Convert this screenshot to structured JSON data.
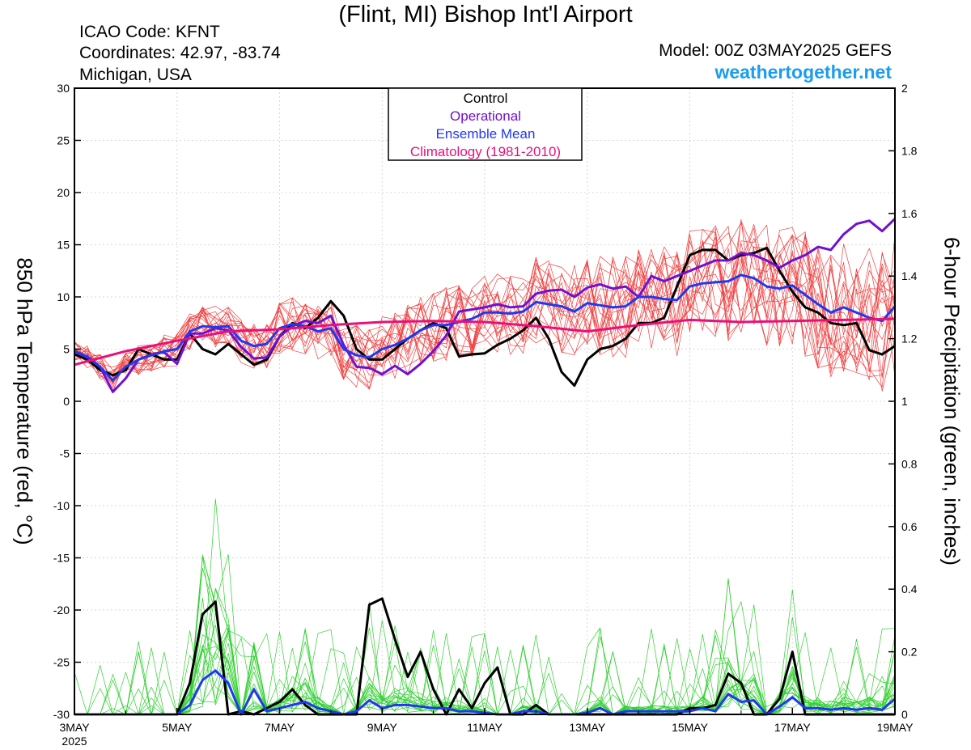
{
  "header": {
    "title": "(Flint, MI) Bishop Int'l Airport",
    "icao": "ICAO Code: KFNT",
    "coords": "Coordinates: 42.97, -83.74",
    "region": "Michigan, USA",
    "model": "Model: 00Z 03MAY2025 GEFS",
    "site": "weathertogether.net"
  },
  "colors": {
    "control": "#000000",
    "operational": "#7010d0",
    "ensemble_mean": "#2038f0",
    "climatology": "#e8107a",
    "members_temp": "#f04040",
    "members_precip": "#30d030",
    "brand": "#1a9cf0"
  },
  "chart_data": {
    "type": "line",
    "x_tick_labels": [
      "3MAY",
      "5MAY",
      "7MAY",
      "9MAY",
      "11MAY",
      "13MAY",
      "15MAY",
      "17MAY",
      "19MAY"
    ],
    "x_year_label": "2025",
    "x_range_days": [
      0,
      16
    ],
    "left_axis": {
      "label": "850 hPa Temperature (red, °C)",
      "range": [
        -30,
        30
      ],
      "ticks": [
        30,
        25,
        20,
        15,
        10,
        5,
        0,
        -5,
        -10,
        -15,
        -20,
        -25,
        -30
      ]
    },
    "right_axis": {
      "label": "6-hour Precipitation (green, inches)",
      "range": [
        0,
        2
      ],
      "ticks": [
        "2",
        "1.8",
        "1.6",
        "1.4",
        "1.2",
        "1",
        "0.8",
        "0.6",
        "0.4",
        "0.2",
        "0"
      ]
    },
    "legend": {
      "position": "top-center",
      "entries": [
        "Control",
        "Operational",
        "Ensemble Mean",
        "Climatology (1981-2010)"
      ]
    },
    "temperature_series": [
      {
        "name": "Control",
        "x": [
          0,
          0.25,
          0.5,
          0.75,
          1,
          1.25,
          1.5,
          1.75,
          2,
          2.25,
          2.5,
          2.75,
          3,
          3.25,
          3.5,
          3.75,
          4,
          4.25,
          4.5,
          4.75,
          5,
          5.25,
          5.5,
          5.75,
          6,
          6.25,
          6.5,
          6.75,
          7,
          7.25,
          7.5,
          7.75,
          8,
          8.25,
          8.5,
          8.75,
          9,
          9.25,
          9.5,
          9.75,
          10,
          10.25,
          10.5,
          10.75,
          11,
          11.25,
          11.5,
          11.75,
          12,
          12.25,
          12.5,
          12.75,
          13,
          13.25,
          13.5,
          13.75,
          14,
          14.25,
          14.5,
          14.75,
          15,
          15.25,
          15.5,
          15.75,
          16
        ],
        "values": [
          4.5,
          4,
          3,
          2.5,
          3,
          5,
          4.5,
          4,
          4,
          6.5,
          5,
          4.5,
          5.5,
          4.5,
          3.5,
          4,
          6.2,
          7.5,
          7,
          8,
          9.6,
          8.2,
          5,
          4,
          4,
          5,
          6,
          6.8,
          7.5,
          7,
          4.3,
          4.5,
          4.6,
          5.4,
          6,
          6.8,
          8,
          6,
          2.8,
          1.5,
          4,
          5,
          5.3,
          6,
          7.5,
          7.5,
          8,
          11,
          14,
          14.5,
          14.5,
          13.5,
          14,
          14.2,
          14.7,
          12.5,
          10.5,
          9,
          8.5,
          7.5,
          7.3,
          7.5,
          4.9,
          4.5,
          5.3
        ]
      },
      {
        "name": "Operational",
        "x": [
          0,
          0.25,
          0.5,
          0.75,
          1,
          1.25,
          1.5,
          1.75,
          2,
          2.25,
          2.5,
          2.75,
          3,
          3.25,
          3.5,
          3.75,
          4,
          4.25,
          4.5,
          4.75,
          5,
          5.25,
          5.5,
          5.75,
          6,
          6.25,
          6.5,
          6.75,
          7,
          7.25,
          7.5,
          7.75,
          8,
          8.25,
          8.5,
          8.75,
          9,
          9.25,
          9.5,
          9.75,
          10,
          10.25,
          10.5,
          10.75,
          11,
          11.25,
          11.5,
          11.75,
          12,
          12.25,
          12.5,
          12.75,
          13,
          13.25,
          13.5,
          13.75,
          14,
          14.25,
          14.5,
          14.75,
          15,
          15.25,
          15.5,
          15.75,
          16
        ],
        "values": [
          4.8,
          4.2,
          3.3,
          0.9,
          2.2,
          4,
          4.5,
          4.7,
          3.6,
          6.5,
          6.5,
          7,
          6.8,
          5.2,
          4.1,
          4.2,
          6.2,
          7.2,
          7.7,
          7.5,
          8.2,
          5.4,
          3.3,
          3.2,
          2.6,
          3.4,
          2.6,
          3.6,
          4.8,
          6.3,
          8.6,
          8.8,
          9,
          9.3,
          9,
          9.1,
          10.3,
          10.6,
          10.7,
          10,
          10.9,
          11.2,
          10.8,
          11,
          10,
          12,
          11.5,
          12,
          12.5,
          13,
          13.5,
          13.5,
          14.2,
          14,
          13.5,
          12.8,
          13.5,
          14,
          14.8,
          14.5,
          16,
          17,
          17.3,
          16.3,
          17.5
        ]
      },
      {
        "name": "Ensemble Mean",
        "x": [
          0,
          0.25,
          0.5,
          0.75,
          1,
          1.25,
          1.5,
          1.75,
          2,
          2.25,
          2.5,
          2.75,
          3,
          3.25,
          3.5,
          3.75,
          4,
          4.25,
          4.5,
          4.75,
          5,
          5.25,
          5.5,
          5.75,
          6,
          6.25,
          6.5,
          6.75,
          7,
          7.25,
          7.5,
          7.75,
          8,
          8.25,
          8.5,
          8.75,
          9,
          9.25,
          9.5,
          9.75,
          10,
          10.25,
          10.5,
          10.75,
          11,
          11.25,
          11.5,
          11.75,
          12,
          12.25,
          12.5,
          12.75,
          13,
          13.25,
          13.5,
          13.75,
          14,
          14.25,
          14.5,
          14.75,
          15,
          15.25,
          15.5,
          15.75,
          16
        ],
        "values": [
          4.8,
          4.3,
          3.3,
          2,
          3.3,
          4,
          4.4,
          4.8,
          5,
          6.7,
          7.2,
          7.1,
          7.2,
          5.8,
          5.3,
          5.5,
          7,
          7.4,
          7.2,
          6.7,
          7,
          5,
          4.4,
          4.2,
          5,
          5.4,
          6,
          6.8,
          7.3,
          7.3,
          7.6,
          7.9,
          8.5,
          8.5,
          8.4,
          8.6,
          9.5,
          9.3,
          9.1,
          8.6,
          9.4,
          9.2,
          9,
          9.1,
          10,
          10,
          9.8,
          9.7,
          11,
          11.3,
          11.4,
          11.5,
          12.1,
          11.8,
          11,
          10.8,
          11.1,
          10.2,
          9.3,
          8.5,
          9,
          8.5,
          8,
          7.7,
          9.1
        ]
      },
      {
        "name": "Climatology (1981-2010)",
        "x": [
          0,
          1,
          2,
          3,
          4,
          5,
          6,
          7,
          8,
          9,
          10,
          11,
          12,
          13,
          14,
          15,
          16
        ],
        "values": [
          3.5,
          4.8,
          5.8,
          6.7,
          6.9,
          7.3,
          7.6,
          7.7,
          7.6,
          7.2,
          6.7,
          7.3,
          7.8,
          7.6,
          7.7,
          7.8,
          7.9
        ]
      }
    ],
    "precip_series": [
      {
        "name": "Control",
        "x": [
          0,
          0.25,
          0.5,
          0.75,
          1,
          1.25,
          1.5,
          1.75,
          2,
          2.25,
          2.5,
          2.75,
          3,
          3.25,
          3.5,
          3.75,
          4,
          4.25,
          4.5,
          4.75,
          5,
          5.25,
          5.5,
          5.75,
          6,
          6.25,
          6.5,
          6.75,
          7,
          7.25,
          7.5,
          7.75,
          8,
          8.25,
          8.5,
          8.75,
          9,
          9.25,
          9.5,
          9.75,
          10,
          10.25,
          10.5,
          10.75,
          11,
          11.25,
          11.5,
          11.75,
          12,
          12.25,
          12.5,
          12.75,
          13,
          13.25,
          13.5,
          13.75,
          14,
          14.25,
          14.5,
          14.75,
          15,
          15.25,
          15.5,
          15.75,
          16
        ],
        "values": [
          0,
          0,
          0,
          0,
          0,
          0,
          0,
          0,
          0,
          0.1,
          0.32,
          0.36,
          0,
          0.01,
          0,
          0.02,
          0.04,
          0.08,
          0.03,
          0,
          0,
          0,
          0,
          0.35,
          0.37,
          0.24,
          0.12,
          0.2,
          0.08,
          0,
          0.08,
          0.02,
          0.1,
          0.15,
          0,
          0,
          0.03,
          0,
          0,
          0,
          0,
          0,
          0,
          0,
          0,
          0,
          0,
          0,
          0.02,
          0.02,
          0.03,
          0.13,
          0.1,
          0,
          0,
          0.05,
          0.2,
          0,
          0,
          0,
          0,
          0,
          0,
          0,
          0
        ]
      },
      {
        "name": "Ensemble Mean",
        "x": [
          0,
          0.25,
          0.5,
          0.75,
          1,
          1.25,
          1.5,
          1.75,
          2,
          2.25,
          2.5,
          2.75,
          3,
          3.25,
          3.5,
          3.75,
          4,
          4.25,
          4.5,
          4.75,
          5,
          5.25,
          5.5,
          5.75,
          6,
          6.25,
          6.5,
          6.75,
          7,
          7.25,
          7.5,
          7.75,
          8,
          8.25,
          8.5,
          8.75,
          9,
          9.25,
          9.5,
          9.75,
          10,
          10.25,
          10.5,
          10.75,
          11,
          11.25,
          11.5,
          11.75,
          12,
          12.25,
          12.5,
          12.75,
          13,
          13.25,
          13.5,
          13.75,
          14,
          14.25,
          14.5,
          14.75,
          15,
          15.25,
          15.5,
          15.75,
          16
        ],
        "values": [
          0,
          0,
          0,
          0,
          0,
          0,
          0,
          0,
          0,
          0.03,
          0.11,
          0.14,
          0.1,
          0,
          0.08,
          0.01,
          0.02,
          0.03,
          0.04,
          0.02,
          0.01,
          0,
          0.01,
          0.045,
          0.02,
          0.03,
          0.03,
          0.025,
          0.02,
          0.02,
          0.01,
          0.01,
          0.005,
          0,
          0,
          0.01,
          0.01,
          0,
          0,
          0,
          0.005,
          0.02,
          0,
          0.01,
          0.01,
          0.01,
          0.01,
          0.01,
          0.01,
          0.02,
          0.01,
          0.065,
          0.04,
          0.045,
          0,
          0.025,
          0.055,
          0.02,
          0.02,
          0.015,
          0.02,
          0.015,
          0.02,
          0.015,
          0.05
        ]
      }
    ]
  }
}
